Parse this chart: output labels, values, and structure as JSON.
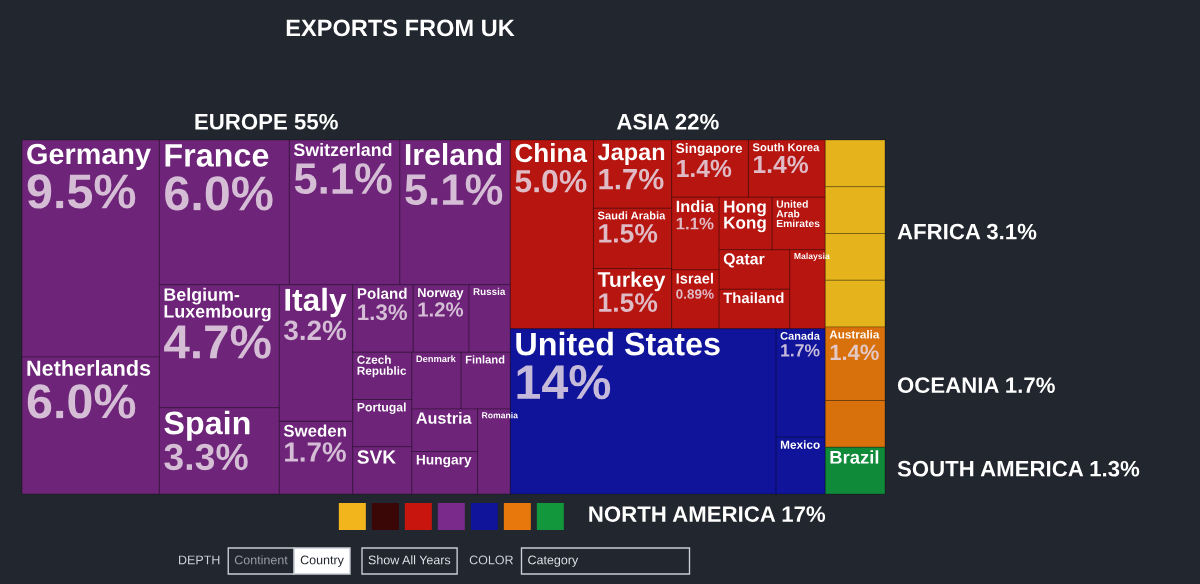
{
  "chart_data": {
    "type": "other",
    "title": "EXPORTS FROM UK",
    "categories": [
      "Germany",
      "Netherlands",
      "France",
      "Switzerland",
      "Ireland",
      "Belgium-\nLuxembourg",
      "Spain",
      "Italy",
      "Sweden",
      "Poland",
      "Norway",
      "Russia",
      "Czech Republic",
      "Portugal",
      "SVK",
      "Denmark",
      "Finland",
      "Austria",
      "Hungary",
      "Romania",
      "China",
      "Japan",
      "Saudi Arabia",
      "Turkey",
      "Singapore",
      "South Korea",
      "India",
      "Israel",
      "Hong Kong",
      "United Arab Emirates",
      "Qatar",
      "Thailand",
      "Malaysia",
      "United States",
      "Canada",
      "Mexico",
      null,
      null,
      null,
      null,
      "Australia",
      null,
      "Brazil"
    ],
    "values": [
      9.5,
      6.0,
      6.0,
      5.1,
      5.1,
      4.7,
      3.3,
      3.2,
      1.7,
      1.3,
      1.2,
      null,
      null,
      null,
      null,
      null,
      null,
      null,
      null,
      null,
      5.0,
      1.7,
      1.5,
      1.5,
      1.4,
      1.4,
      1.1,
      0.89,
      null,
      null,
      null,
      null,
      null,
      14,
      1.7,
      null,
      null,
      null,
      null,
      null,
      1.4,
      null,
      null
    ],
    "value_labels": [
      "9.5%",
      "6.0%",
      "6.0%",
      "5.1%",
      "5.1%",
      "4.7%",
      "3.3%",
      "3.2%",
      "1.7%",
      "1.3%",
      "1.2%",
      null,
      null,
      null,
      null,
      null,
      null,
      null,
      null,
      null,
      "5.0%",
      "1.7%",
      "1.5%",
      "1.5%",
      "1.4%",
      "1.4%",
      "1.1%",
      "0.89%",
      null,
      null,
      null,
      null,
      null,
      "14%",
      "1.7%",
      null,
      null,
      null,
      null,
      null,
      "1.4%",
      null,
      null
    ],
    "colors": [
      "#6e2479",
      "#6e2479",
      "#6e2479",
      "#6e2479",
      "#6e2479",
      "#6e2479",
      "#6e2479",
      "#6e2479",
      "#6e2479",
      "#6e2479",
      "#6e2479",
      "#6e2479",
      "#6e2479",
      "#6e2479",
      "#6e2479",
      "#6e2479",
      "#6e2479",
      "#6e2479",
      "#6e2479",
      "#6e2479",
      "#b71510",
      "#b71510",
      "#b71510",
      "#b71510",
      "#b71510",
      "#b71510",
      "#b71510",
      "#b71510",
      "#b71510",
      "#b71510",
      "#b71510",
      "#b71510",
      "#b71510",
      "#10149a",
      "#10149a",
      "#10149a",
      "#e5b31b",
      "#e5b31b",
      "#e5b31b",
      "#e5b31b",
      "#d8700c",
      "#d8700c",
      "#0f8a39"
    ],
    "annotations": [
      "EUROPE 55%",
      "ASIA 22%",
      "NORTH AMERICA 17%",
      "AFRICA 3.1%",
      "OCEANIA 1.7%",
      "SOUTH AMERICA 1.3%",
      "DEPTH",
      "Continent",
      "Country",
      "Show All Years",
      "COLOR",
      "Category"
    ]
  }
}
